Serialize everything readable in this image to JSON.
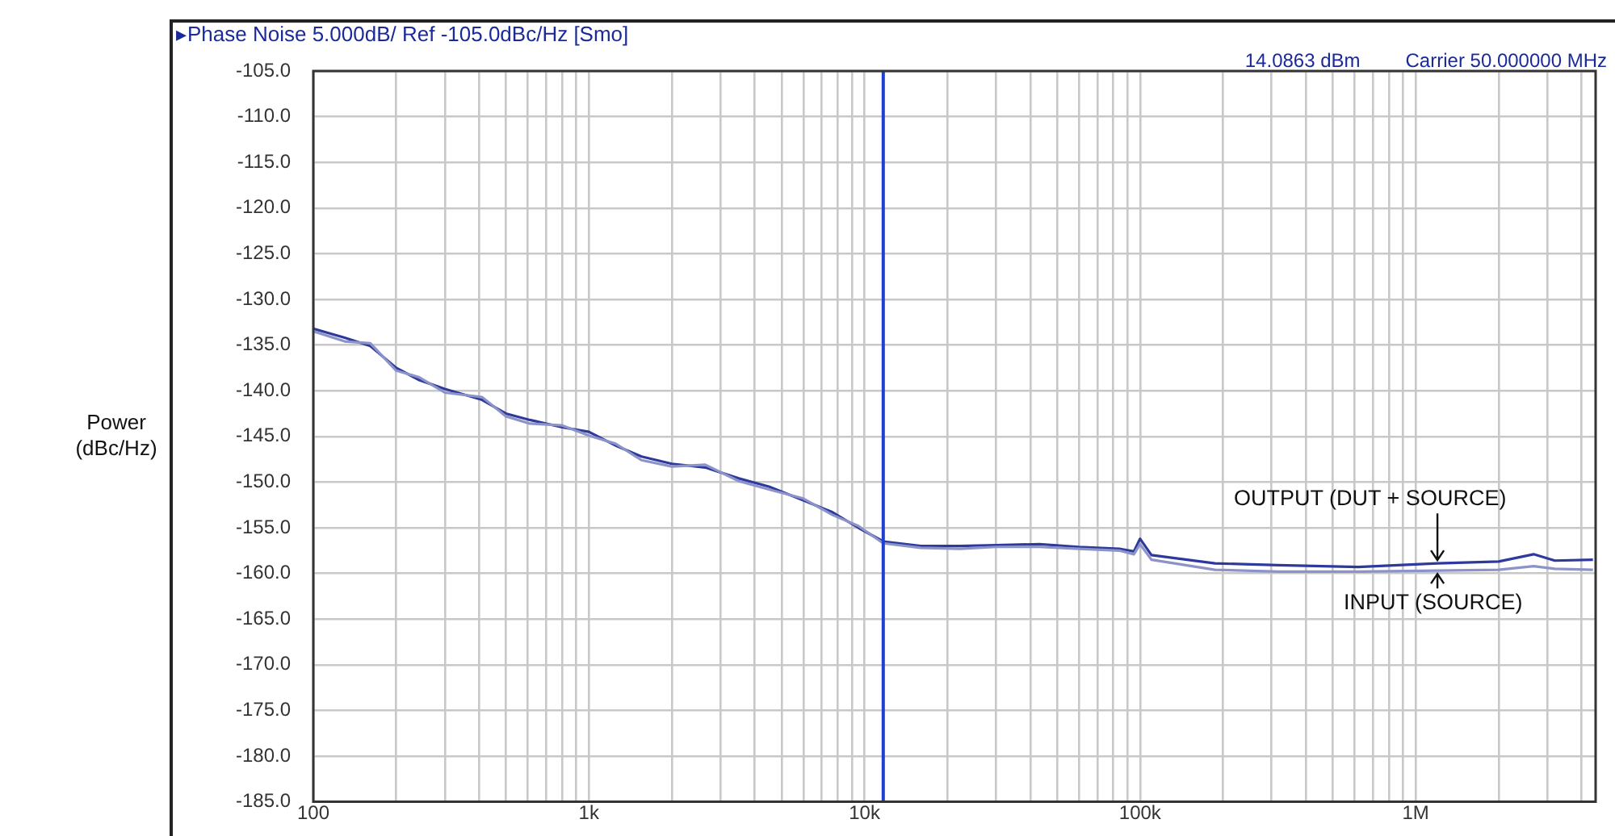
{
  "chart_data": {
    "type": "line",
    "title": "▸Phase Noise 5.000dB/ Ref -105.0dBc/Hz [Smo]",
    "ylabel": "Power\n(dBc/Hz)",
    "annotations": [
      "Carrier 50.000000 MHz",
      "14.0863 dBm"
    ],
    "series": [
      {
        "name": "OUTPUT (DUT + SOURCE)",
        "color": "#2d3a9c",
        "x": [
          100,
          130,
          161,
          200,
          241,
          300,
          410,
          500,
          611,
          800,
          1000,
          1250,
          1552,
          2000,
          2644,
          3500,
          4500,
          6000,
          7660,
          9500,
          11700,
          16000,
          22200,
          30000,
          43200,
          60000,
          84100,
          95000,
          100000,
          110000,
          187000,
          318000,
          619000,
          1200000,
          2000000,
          2680000,
          3200000,
          4400000
        ],
        "values": [
          -133.2,
          -134.2,
          -135.1,
          -137.5,
          -138.8,
          -139.8,
          -141,
          -142.5,
          -143.2,
          -144,
          -144.5,
          -146,
          -147.2,
          -148,
          -148.4,
          -149.6,
          -150.5,
          -152,
          -153.3,
          -155,
          -156.5,
          -157,
          -157,
          -156.9,
          -156.8,
          -157.1,
          -157.3,
          -157.6,
          -156.2,
          -158,
          -158.9,
          -159.1,
          -159.3,
          -158.9,
          -158.7,
          -157.9,
          -158.6,
          -158.5
        ]
      },
      {
        "name": "INPUT (SOURCE)",
        "color": "#8c93c8",
        "x": [
          100,
          130,
          161,
          200,
          241,
          300,
          410,
          500,
          611,
          800,
          1000,
          1250,
          1552,
          2000,
          2644,
          3500,
          4500,
          6000,
          7660,
          9500,
          11700,
          16000,
          22200,
          30000,
          43200,
          60000,
          84100,
          95000,
          100000,
          110000,
          187000,
          318000,
          619000,
          1200000,
          2000000,
          2680000,
          3200000,
          4400000
        ],
        "values": [
          -133.5,
          -134.6,
          -134.8,
          -137.8,
          -138.5,
          -140.2,
          -140.7,
          -142.8,
          -143.6,
          -143.8,
          -144.9,
          -145.8,
          -147.6,
          -148.3,
          -148.1,
          -149.9,
          -150.8,
          -151.8,
          -153.6,
          -154.8,
          -156.7,
          -157.2,
          -157.3,
          -157.1,
          -157.1,
          -157.3,
          -157.5,
          -157.9,
          -156.8,
          -158.5,
          -159.6,
          -159.8,
          -159.8,
          -159.7,
          -159.6,
          -159.2,
          -159.5,
          -159.6
        ]
      }
    ],
    "xlim": [
      100,
      4500000
    ],
    "ylim": [
      -185,
      -105
    ],
    "xticks": [
      {
        "value": 100,
        "label": "100"
      },
      {
        "value": 200,
        "label": null
      },
      {
        "value": 300,
        "label": null
      },
      {
        "value": 400,
        "label": null
      },
      {
        "value": 500,
        "label": null
      },
      {
        "value": 600,
        "label": null
      },
      {
        "value": 700,
        "label": null
      },
      {
        "value": 800,
        "label": null
      },
      {
        "value": 900,
        "label": null
      },
      {
        "value": 1000,
        "label": "1k"
      },
      {
        "value": 2000,
        "label": null
      },
      {
        "value": 3000,
        "label": null
      },
      {
        "value": 4000,
        "label": null
      },
      {
        "value": 5000,
        "label": null
      },
      {
        "value": 6000,
        "label": null
      },
      {
        "value": 7000,
        "label": null
      },
      {
        "value": 8000,
        "label": null
      },
      {
        "value": 9000,
        "label": null
      },
      {
        "value": 10000,
        "label": "10k"
      },
      {
        "value": 20000,
        "label": null
      },
      {
        "value": 30000,
        "label": null
      },
      {
        "value": 40000,
        "label": null
      },
      {
        "value": 50000,
        "label": null
      },
      {
        "value": 60000,
        "label": null
      },
      {
        "value": 70000,
        "label": null
      },
      {
        "value": 80000,
        "label": null
      },
      {
        "value": 90000,
        "label": null
      },
      {
        "value": 100000,
        "label": "100k"
      },
      {
        "value": 200000,
        "label": null
      },
      {
        "value": 300000,
        "label": null
      },
      {
        "value": 400000,
        "label": null
      },
      {
        "value": 500000,
        "label": null
      },
      {
        "value": 600000,
        "label": null
      },
      {
        "value": 700000,
        "label": null
      },
      {
        "value": 800000,
        "label": null
      },
      {
        "value": 900000,
        "label": null
      },
      {
        "value": 1000000,
        "label": "1M"
      },
      {
        "value": 2000000,
        "label": null
      },
      {
        "value": 3000000,
        "label": null
      },
      {
        "value": 4000000,
        "label": null
      }
    ],
    "yticks": [
      {
        "value": -105,
        "label": "-105.0"
      },
      {
        "value": -110,
        "label": "-110.0"
      },
      {
        "value": -115,
        "label": "-115.0"
      },
      {
        "value": -120,
        "label": "-120.0"
      },
      {
        "value": -125,
        "label": "-125.0"
      },
      {
        "value": -130,
        "label": "-130.0"
      },
      {
        "value": -135,
        "label": "-135.0"
      },
      {
        "value": -140,
        "label": "-140.0"
      },
      {
        "value": -145,
        "label": "-145.0"
      },
      {
        "value": -150,
        "label": "-150.0"
      },
      {
        "value": -155,
        "label": "-155.0"
      },
      {
        "value": -160,
        "label": "-160.0"
      },
      {
        "value": -165,
        "label": "-165.0"
      },
      {
        "value": -170,
        "label": "-170.0"
      },
      {
        "value": -175,
        "label": "-175.0"
      },
      {
        "value": -180,
        "label": "-180.0"
      },
      {
        "value": -185,
        "label": "-185.0"
      }
    ],
    "ref_lines": [
      {
        "axis": "x",
        "value": 11700,
        "label": null,
        "color": "#1f3fd0"
      }
    ],
    "log": "x",
    "grid": true,
    "legend": false,
    "marker": "none",
    "line_style": "solid"
  }
}
